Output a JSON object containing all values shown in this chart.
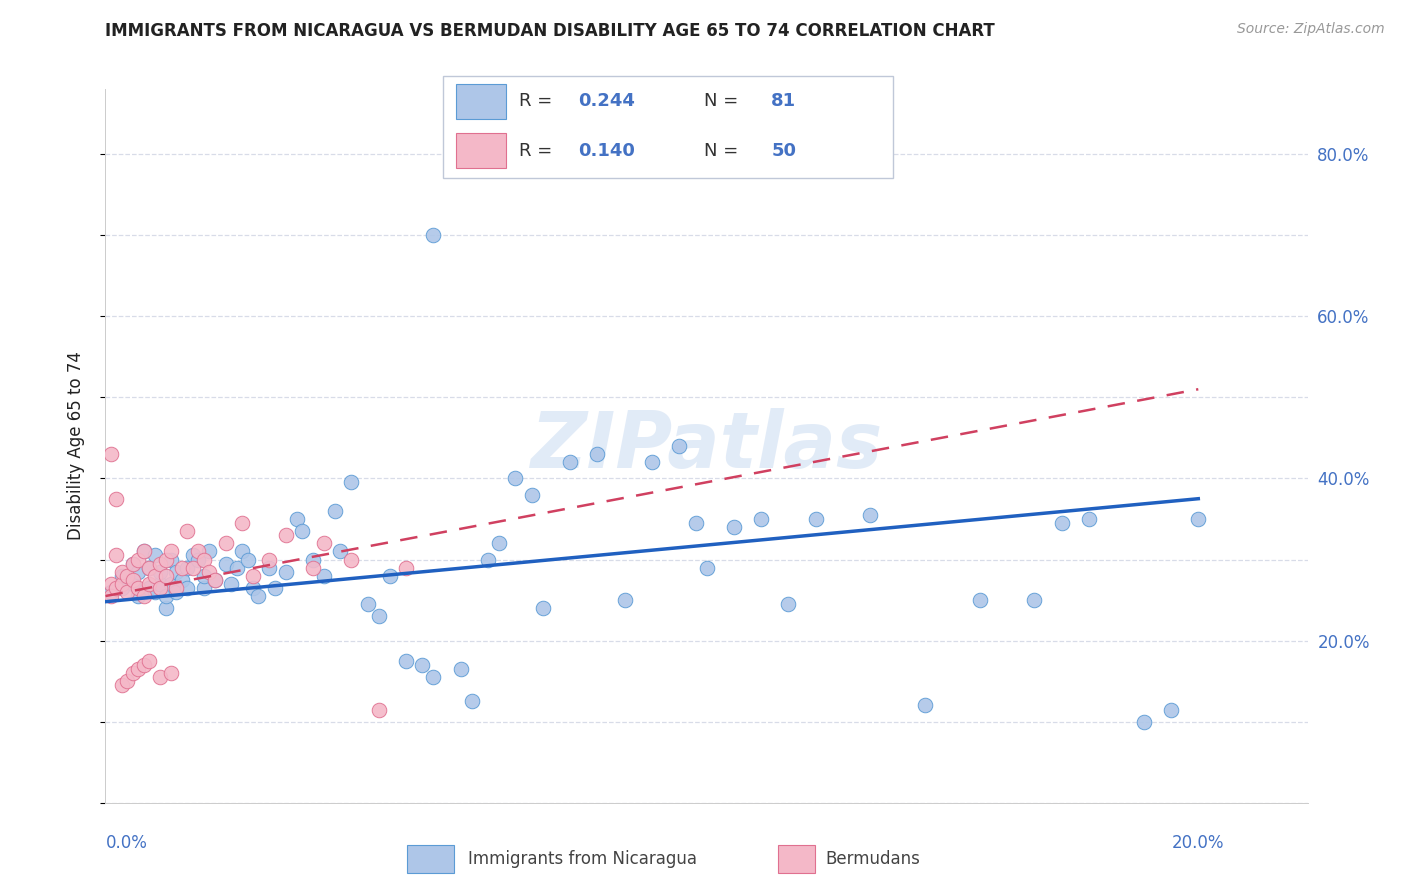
{
  "title": "IMMIGRANTS FROM NICARAGUA VS BERMUDAN DISABILITY AGE 65 TO 74 CORRELATION CHART",
  "source": "Source: ZipAtlas.com",
  "ylabel": "Disability Age 65 to 74",
  "xlim": [
    0.0,
    0.22
  ],
  "ylim": [
    0.0,
    0.88
  ],
  "watermark": "ZIPatlas",
  "blue_color": "#aec6e8",
  "blue_edge_color": "#5b9bd5",
  "blue_line_color": "#2060c0",
  "pink_color": "#f4b8c8",
  "pink_edge_color": "#e07090",
  "pink_line_color": "#d04060",
  "scatter_blue_x": [
    0.001,
    0.003,
    0.003,
    0.005,
    0.005,
    0.006,
    0.006,
    0.007,
    0.007,
    0.008,
    0.008,
    0.009,
    0.009,
    0.01,
    0.01,
    0.011,
    0.011,
    0.012,
    0.012,
    0.013,
    0.013,
    0.014,
    0.015,
    0.015,
    0.016,
    0.017,
    0.018,
    0.018,
    0.019,
    0.02,
    0.022,
    0.023,
    0.024,
    0.025,
    0.026,
    0.027,
    0.028,
    0.03,
    0.031,
    0.033,
    0.035,
    0.036,
    0.038,
    0.04,
    0.042,
    0.043,
    0.045,
    0.048,
    0.05,
    0.052,
    0.055,
    0.058,
    0.06,
    0.065,
    0.067,
    0.07,
    0.072,
    0.075,
    0.078,
    0.08,
    0.085,
    0.09,
    0.095,
    0.1,
    0.105,
    0.108,
    0.11,
    0.115,
    0.12,
    0.125,
    0.13,
    0.14,
    0.15,
    0.16,
    0.17,
    0.18,
    0.19,
    0.195,
    0.2,
    0.175,
    0.06
  ],
  "scatter_blue_y": [
    0.26,
    0.265,
    0.28,
    0.27,
    0.295,
    0.255,
    0.285,
    0.31,
    0.26,
    0.265,
    0.29,
    0.305,
    0.26,
    0.27,
    0.285,
    0.24,
    0.255,
    0.3,
    0.27,
    0.26,
    0.285,
    0.275,
    0.29,
    0.265,
    0.305,
    0.3,
    0.265,
    0.28,
    0.31,
    0.275,
    0.295,
    0.27,
    0.29,
    0.31,
    0.3,
    0.265,
    0.255,
    0.29,
    0.265,
    0.285,
    0.35,
    0.335,
    0.3,
    0.28,
    0.36,
    0.31,
    0.395,
    0.245,
    0.23,
    0.28,
    0.175,
    0.17,
    0.155,
    0.165,
    0.125,
    0.3,
    0.32,
    0.4,
    0.38,
    0.24,
    0.42,
    0.43,
    0.25,
    0.42,
    0.44,
    0.345,
    0.29,
    0.34,
    0.35,
    0.245,
    0.35,
    0.355,
    0.12,
    0.25,
    0.25,
    0.35,
    0.1,
    0.115,
    0.35,
    0.345,
    0.7
  ],
  "scatter_pink_x": [
    0.001,
    0.001,
    0.002,
    0.002,
    0.003,
    0.003,
    0.004,
    0.004,
    0.005,
    0.005,
    0.006,
    0.006,
    0.007,
    0.007,
    0.008,
    0.008,
    0.009,
    0.01,
    0.01,
    0.011,
    0.011,
    0.012,
    0.013,
    0.014,
    0.015,
    0.016,
    0.017,
    0.018,
    0.019,
    0.02,
    0.022,
    0.025,
    0.027,
    0.03,
    0.033,
    0.038,
    0.04,
    0.045,
    0.05,
    0.055,
    0.001,
    0.002,
    0.003,
    0.004,
    0.005,
    0.006,
    0.007,
    0.008,
    0.01,
    0.012
  ],
  "scatter_pink_y": [
    0.27,
    0.255,
    0.265,
    0.305,
    0.27,
    0.285,
    0.26,
    0.28,
    0.295,
    0.275,
    0.3,
    0.265,
    0.31,
    0.255,
    0.29,
    0.27,
    0.28,
    0.295,
    0.265,
    0.3,
    0.28,
    0.31,
    0.265,
    0.29,
    0.335,
    0.29,
    0.31,
    0.3,
    0.285,
    0.275,
    0.32,
    0.345,
    0.28,
    0.3,
    0.33,
    0.29,
    0.32,
    0.3,
    0.115,
    0.29,
    0.43,
    0.375,
    0.145,
    0.15,
    0.16,
    0.165,
    0.17,
    0.175,
    0.155,
    0.16
  ],
  "blue_trend_x": [
    0.0,
    0.2
  ],
  "blue_trend_y": [
    0.248,
    0.375
  ],
  "pink_trend_x": [
    0.0,
    0.2
  ],
  "pink_trend_y": [
    0.255,
    0.51
  ],
  "grid_color": "#d8dce8",
  "ytick_vals": [
    0.2,
    0.4,
    0.6,
    0.8
  ],
  "ytick_labels": [
    "20.0%",
    "40.0%",
    "60.0%",
    "80.0%"
  ],
  "legend_r1": "0.244",
  "legend_n1": "81",
  "legend_r2": "0.140",
  "legend_n2": "50",
  "title_fontsize": 12,
  "axis_label_color": "#4472c4",
  "text_dark": "#222222",
  "source_color": "#999999"
}
